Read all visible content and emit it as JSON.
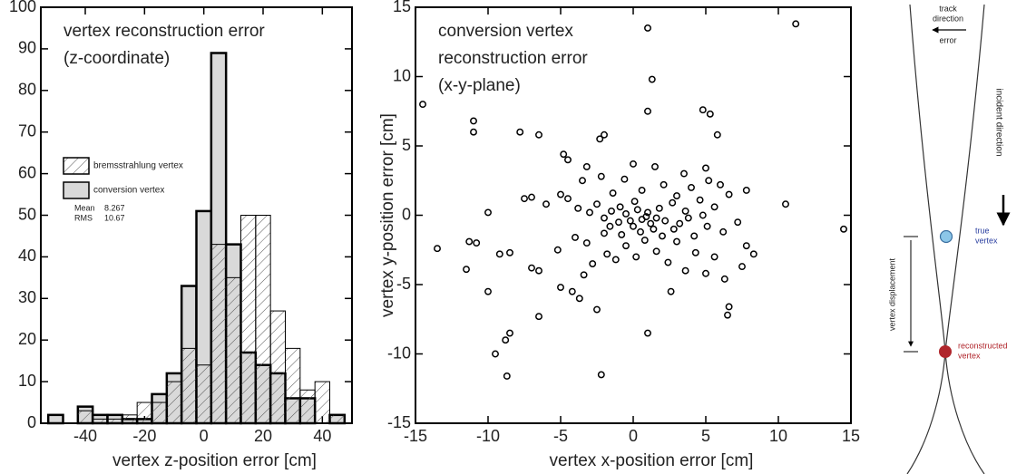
{
  "chart_data": [
    {
      "type": "histogram",
      "annotation": [
        "vertex reconstruction error",
        "(z-coordinate)"
      ],
      "x_label": "vertex z-position error  [cm]",
      "bins": [
        -52.5,
        -47.5,
        -42.5,
        -37.5,
        -32.5,
        -27.5,
        -22.5,
        -17.5,
        -12.5,
        -7.5,
        -2.5,
        2.5,
        7.5,
        12.5,
        17.5,
        22.5,
        27.5,
        32.5,
        37.5,
        42.5,
        47.5
      ],
      "series": [
        {
          "name": "conversion vertex",
          "color": "#d9d9d9",
          "outline_width": 2.5,
          "values": [
            2,
            0,
            4,
            2,
            2,
            1,
            1,
            7,
            12,
            33,
            51,
            89,
            43,
            17,
            14,
            12,
            6,
            6,
            0,
            2
          ]
        },
        {
          "name": "bremsstrahlung vertex",
          "color": "#808080",
          "hatch": true,
          "outline_width": 1,
          "values": [
            0,
            0,
            3,
            1,
            1,
            2,
            5,
            5,
            10,
            18,
            14,
            43,
            35,
            50,
            50,
            27,
            18,
            8,
            10,
            2
          ]
        }
      ],
      "stats": [
        {
          "label": "Mean",
          "value": 8.267
        },
        {
          "label": "RMS",
          "value": 10.67
        }
      ],
      "xlim": [
        -55,
        50
      ],
      "ylim": [
        0,
        100
      ],
      "xticks": [
        -40,
        -20,
        0,
        20,
        40
      ],
      "yticks": [
        0,
        10,
        20,
        30,
        40,
        50,
        60,
        70,
        80,
        90,
        100
      ]
    },
    {
      "type": "scatter",
      "annotation": [
        "conversion vertex",
        "reconstruction error",
        "(x-y-plane)"
      ],
      "x_label": "vertex x-position error  [cm]",
      "y_label": "vertex y-position error  [cm]",
      "color": "#000000",
      "x": [
        -11,
        -11,
        -7.8,
        -6.5,
        -2,
        -2.3,
        1,
        1.3,
        1,
        4.8,
        5.3,
        11.2,
        5.8,
        -4.8,
        -4.5,
        -3.2,
        0,
        1.5,
        3.5,
        5,
        5.2,
        7.8,
        6,
        -14.5,
        -13.5,
        -11.3,
        -10.8,
        -11.5,
        -10,
        -9.2,
        -10,
        -7,
        -7.5,
        -6,
        -5,
        -4.5,
        -3.8,
        -3,
        -2.5,
        -2,
        -1.5,
        -1,
        -0.5,
        0,
        0.3,
        0.6,
        1,
        1.4,
        1.8,
        2.2,
        2.7,
        3.2,
        3.6,
        4.2,
        4.6,
        5.1,
        5.6,
        6.2,
        6.6,
        7.2,
        7.8,
        8.3,
        10.5,
        14.5,
        -8.8,
        -8.5,
        -9.5,
        -8.7,
        -6.5,
        -2.2,
        1,
        -6.5,
        -5,
        -4.2,
        -3.7,
        -3.4,
        -2.8,
        -2.5,
        -1.8,
        -1.2,
        -0.5,
        0.2,
        0.8,
        1.6,
        2.4,
        3,
        3.6,
        4.3,
        5,
        5.6,
        6.3,
        6.5,
        6.6,
        2.6,
        -5.2,
        -4,
        -3.2,
        -2,
        -1.6,
        -0.8,
        0.5,
        1.2,
        2,
        2.8,
        3.8,
        4.8,
        -7,
        -8.5,
        7.5,
        -3.5,
        -2.2,
        -0.6,
        0.6,
        2.1,
        3,
        4,
        -1.4,
        0.1,
        -0.2,
        0.9,
        -0.9,
        1.6
      ],
      "values": [
        6.8,
        6,
        6,
        5.8,
        5.8,
        5.5,
        13.5,
        9.8,
        7.5,
        7.6,
        7.3,
        13.8,
        5.8,
        4.4,
        4,
        3.5,
        3.7,
        3.5,
        3,
        3.4,
        2.5,
        1.8,
        2.2,
        8,
        -2.4,
        -1.9,
        -2,
        -3.9,
        -5.5,
        -2.8,
        0.2,
        1.3,
        1.2,
        0.8,
        1.5,
        1.2,
        0.5,
        0.2,
        0.8,
        -0.2,
        0.3,
        -0.5,
        0.1,
        -0.8,
        0.4,
        -0.3,
        0.2,
        -1,
        0.5,
        -0.4,
        0.9,
        -0.6,
        0.3,
        -1.5,
        1.1,
        -0.8,
        0.6,
        -1.2,
        1.5,
        -0.5,
        -2.2,
        -2.8,
        0.8,
        -1,
        -9,
        -8.5,
        -10,
        -11.6,
        -7.3,
        -11.5,
        -8.5,
        -4,
        -5.2,
        -5.5,
        -6,
        -4.3,
        -3.5,
        -6.8,
        -2.8,
        -3.2,
        -2.2,
        -3,
        -1.8,
        -2.6,
        -3.4,
        -1.9,
        -4,
        -2.7,
        -4.2,
        -3,
        -4.6,
        -7.2,
        -6.6,
        -5.5,
        -2.5,
        -1.6,
        -2,
        -1.3,
        -0.8,
        -1.4,
        -1.2,
        -0.6,
        -1.5,
        -1,
        -0.2,
        0,
        -3.8,
        -2.7,
        -3.7,
        2.5,
        2.8,
        2.6,
        1.8,
        2.2,
        1.4,
        2,
        1.6,
        1,
        -0.4,
        -0.1,
        0.6,
        -0.2
      ],
      "xlim": [
        -15,
        15
      ],
      "ylim": [
        -15,
        15
      ],
      "xticks": [
        -15,
        -10,
        -5,
        0,
        5,
        10,
        15
      ],
      "yticks": [
        -15,
        -10,
        -5,
        0,
        5,
        10,
        15
      ]
    }
  ],
  "diagram": {
    "track_direction": [
      "track",
      "direction"
    ],
    "error": "error",
    "incident_direction": "incident direction",
    "true_vertex": [
      "true",
      "vertex"
    ],
    "vertex_displacement": "vertex displacement",
    "reconstructed_vertex": [
      "reconstructed",
      "vertex"
    ]
  }
}
